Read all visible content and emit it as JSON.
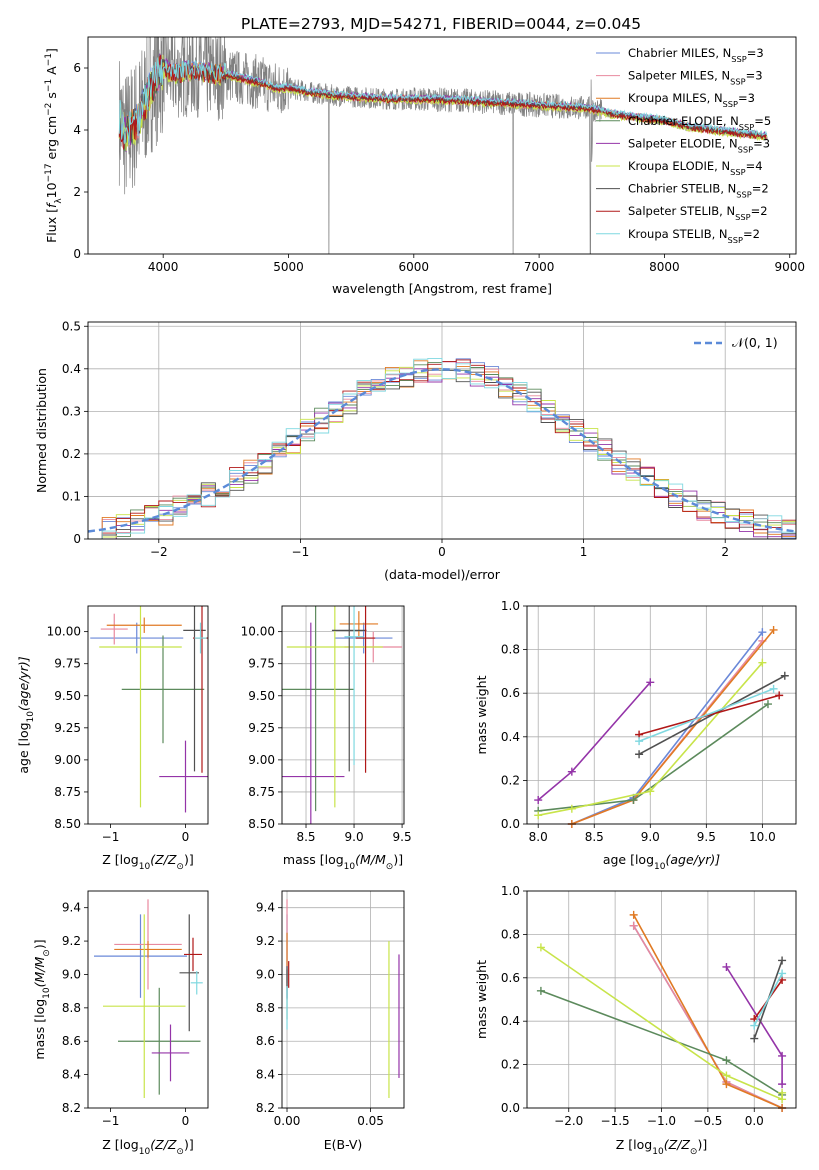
{
  "figure_title": "PLATE=2793, MJD=54271, FIBERID=0044, z=0.045",
  "model_colors": [
    "#6a88d8",
    "#e8899e",
    "#e07a24",
    "#5c8a5c",
    "#9434a8",
    "#c8e44a",
    "#505050",
    "#b01818",
    "#7fd8e0"
  ],
  "chart_data": [
    {
      "id": "spectrum",
      "type": "line",
      "title": "PLATE=2793, MJD=54271, FIBERID=0044, z=0.045",
      "xlabel": "wavelength [Angstrom, rest frame]",
      "ylabel_pre": "Flux [",
      "ylabel_sym": "f",
      "ylabel_sub": "λ",
      "ylabel_mid": "10",
      "ylabel_sup": "−17",
      "ylabel_post": " erg cm",
      "ylabel_sup2": "−2",
      "ylabel_post2": " s",
      "ylabel_sup3": "−1",
      "ylabel_post3": " A",
      "ylabel_sup4": "−1",
      "ylabel_end": "]",
      "xlim": [
        3400,
        9050
      ],
      "ylim": [
        0,
        7
      ],
      "xticks": [
        4000,
        5000,
        6000,
        7000,
        8000,
        9000
      ],
      "yticks": [
        0,
        2,
        4,
        6
      ],
      "data_range": [
        3650,
        8820
      ],
      "data_color": "#808080",
      "legend_position": "upper right",
      "continuum_x": [
        3650,
        3700,
        3800,
        3900,
        4000,
        4100,
        4200,
        4300,
        4400,
        4500,
        4600,
        4700,
        4800,
        4900,
        5000,
        5200,
        5400,
        5600,
        5800,
        6000,
        6200,
        6400,
        6600,
        6800,
        7000,
        7200,
        7400,
        7600,
        7800,
        8000,
        8200,
        8400,
        8600,
        8820
      ],
      "continuum_y": [
        4.4,
        3.8,
        4.3,
        5.4,
        6.0,
        5.8,
        5.9,
        5.9,
        5.8,
        5.8,
        5.7,
        5.6,
        5.5,
        5.35,
        5.35,
        5.2,
        5.1,
        5.05,
        5.0,
        5.0,
        4.98,
        4.95,
        4.9,
        4.85,
        4.8,
        4.75,
        4.7,
        4.5,
        4.4,
        4.3,
        4.1,
        4.0,
        3.9,
        3.8
      ],
      "series": [
        {
          "legend_pre": "Chabrier MILES, N",
          "legend_sub": "SSP",
          "legend_post": "=3"
        },
        {
          "legend_pre": "Salpeter MILES, N",
          "legend_sub": "SSP",
          "legend_post": "=3"
        },
        {
          "legend_pre": "Kroupa MILES, N",
          "legend_sub": "SSP",
          "legend_post": "=3"
        },
        {
          "legend_pre": "Chabrier ELODIE, N",
          "legend_sub": "SSP",
          "legend_post": "=5"
        },
        {
          "legend_pre": "Salpeter ELODIE, N",
          "legend_sub": "SSP",
          "legend_post": "=3"
        },
        {
          "legend_pre": "Kroupa ELODIE, N",
          "legend_sub": "SSP",
          "legend_post": "=4"
        },
        {
          "legend_pre": "Chabrier STELIB, N",
          "legend_sub": "SSP",
          "legend_post": "=2"
        },
        {
          "legend_pre": "Salpeter STELIB, N",
          "legend_sub": "SSP",
          "legend_post": "=2"
        },
        {
          "legend_pre": "Kroupa STELIB, N",
          "legend_sub": "SSP",
          "legend_post": "=2"
        }
      ]
    },
    {
      "id": "residuals",
      "type": "histogram",
      "xlabel": "(data-model)/error",
      "ylabel": "Normed distribution",
      "xlim": [
        -2.5,
        2.5
      ],
      "ylim": [
        0,
        0.51
      ],
      "xticks": [
        -2,
        -1,
        0,
        1,
        2
      ],
      "yticks": [
        0.0,
        0.1,
        0.2,
        0.3,
        0.4,
        0.5
      ],
      "grid": true,
      "bin_width": 0.1,
      "legend_position": "upper right",
      "normal_curve": {
        "label": "𝒩(0, 1)",
        "color": "#5b8ad8",
        "mean": 0,
        "sigma": 1
      }
    },
    {
      "id": "age-vs-z",
      "type": "errorbar",
      "xlabel_pre": "Z [log",
      "xlabel_sub": "10",
      "xlabel_post": "(Z/Z",
      "xlabel_sub2": "⊙",
      "xlabel_end": ")]",
      "ylabel_pre": "age  [log",
      "ylabel_sub": "10",
      "ylabel_post": "(age/yr)]",
      "xlim": [
        -1.3,
        0.3
      ],
      "ylim": [
        8.5,
        10.2
      ],
      "xticks": [
        -1,
        0
      ],
      "yticks": [
        8.5,
        8.75,
        9.0,
        9.25,
        9.5,
        9.75,
        10.0
      ],
      "ytick_labels": [
        "8.50",
        "8.75",
        "9.00",
        "9.25",
        "9.50",
        "9.75",
        "10.00"
      ],
      "grid": false,
      "items": [
        {
          "c": 0,
          "x": -0.65,
          "xerr": 0.62,
          "y": 9.95,
          "yerr": 0.12
        },
        {
          "c": 1,
          "x": -0.95,
          "xerr": 0.18,
          "y": 10.02,
          "yerr": 0.12
        },
        {
          "c": 2,
          "x": -0.55,
          "xerr": 0.5,
          "y": 10.05,
          "yerr": 0.06
        },
        {
          "c": 3,
          "x": -0.3,
          "xerr": 0.55,
          "y": 9.55,
          "yerr": 0.42
        },
        {
          "c": 4,
          "x": 0.0,
          "xerr": 0.35,
          "y": 8.87,
          "yerr": 0.28
        },
        {
          "c": 5,
          "x": -0.6,
          "xerr": 0.55,
          "y": 9.88,
          "yerr": 1.25
        },
        {
          "c": 6,
          "x": 0.12,
          "xerr": 0.15,
          "y": 10.01,
          "yerr": 1.1
        },
        {
          "c": 7,
          "x": 0.22,
          "xerr": 0.12,
          "y": 9.95,
          "yerr": 1.05
        },
        {
          "c": 8,
          "x": 0.2,
          "xerr": 0.08,
          "y": 9.95,
          "yerr": 0.12
        }
      ]
    },
    {
      "id": "age-vs-mass",
      "type": "errorbar",
      "xlabel_pre": "mass [log",
      "xlabel_sub": "10",
      "xlabel_post": "(M/M",
      "xlabel_sub2": "⊙",
      "xlabel_end": ")]",
      "xlim": [
        8.25,
        9.52
      ],
      "ylim": [
        8.5,
        10.2
      ],
      "xticks": [
        8.5,
        9.0,
        9.5
      ],
      "xtick_labels": [
        "8.5",
        "9.0",
        "9.5"
      ],
      "yticks": [
        8.5,
        8.75,
        9.0,
        9.25,
        9.5,
        9.75,
        10.0
      ],
      "ytick_labels": [
        "8.50",
        "8.75",
        "9.00",
        "9.25",
        "9.50",
        "9.75",
        "10.00"
      ],
      "grid": true,
      "items": [
        {
          "c": 0,
          "x": 9.1,
          "xerr": 0.3,
          "y": 9.95,
          "yerr": 0.12
        },
        {
          "c": 1,
          "x": 9.2,
          "xerr": 0.3,
          "y": 9.88,
          "yerr": 0.12
        },
        {
          "c": 2,
          "x": 9.05,
          "xerr": 0.2,
          "y": 10.06,
          "yerr": 0.1
        },
        {
          "c": 3,
          "x": 8.6,
          "xerr": 0.4,
          "y": 9.55,
          "yerr": 0.95
        },
        {
          "c": 4,
          "x": 8.55,
          "xerr": 0.35,
          "y": 8.87,
          "yerr": 1.2
        },
        {
          "c": 5,
          "x": 8.8,
          "xerr": 0.5,
          "y": 9.88,
          "yerr": 1.25
        },
        {
          "c": 6,
          "x": 8.95,
          "xerr": 0.18,
          "y": 10.01,
          "yerr": 1.1
        },
        {
          "c": 7,
          "x": 9.12,
          "xerr": 0.1,
          "y": 9.95,
          "yerr": 1.05
        },
        {
          "c": 8,
          "x": 9.0,
          "xerr": 0.1,
          "y": 9.96,
          "yerr": 1.0
        }
      ]
    },
    {
      "id": "mass-weight-vs-age",
      "type": "line",
      "xlabel_pre": "age  [log",
      "xlabel_sub": "10",
      "xlabel_post": "(age/yr)]",
      "ylabel": "mass weight",
      "xlim": [
        7.9,
        10.3
      ],
      "ylim": [
        0,
        1
      ],
      "xticks": [
        8.0,
        8.5,
        9.0,
        9.5,
        10.0
      ],
      "xtick_labels": [
        "8.0",
        "8.5",
        "9.0",
        "9.5",
        "10.0"
      ],
      "yticks": [
        0.0,
        0.2,
        0.4,
        0.6,
        0.8,
        1.0
      ],
      "ytick_labels": [
        "0.0",
        "0.2",
        "0.4",
        "0.6",
        "0.8",
        "1.0"
      ],
      "grid": true,
      "series": [
        {
          "c": 0,
          "x": [
            8.3,
            8.85,
            10.0
          ],
          "y": [
            0.0,
            0.12,
            0.88
          ]
        },
        {
          "c": 1,
          "x": [
            8.3,
            8.85,
            10.0
          ],
          "y": [
            0.0,
            0.11,
            0.84
          ]
        },
        {
          "c": 2,
          "x": [
            8.3,
            8.85,
            10.1
          ],
          "y": [
            0.0,
            0.11,
            0.89
          ]
        },
        {
          "c": 3,
          "x": [
            8.0,
            8.85,
            10.05
          ],
          "y": [
            0.06,
            0.11,
            0.55
          ]
        },
        {
          "c": 4,
          "x": [
            8.0,
            8.3,
            9.0
          ],
          "y": [
            0.11,
            0.24,
            0.65
          ]
        },
        {
          "c": 5,
          "x": [
            8.0,
            8.3,
            9.0,
            10.0
          ],
          "y": [
            0.04,
            0.07,
            0.15,
            0.74
          ]
        },
        {
          "c": 6,
          "x": [
            8.9,
            10.2
          ],
          "y": [
            0.32,
            0.68
          ]
        },
        {
          "c": 7,
          "x": [
            8.9,
            10.15
          ],
          "y": [
            0.41,
            0.59
          ]
        },
        {
          "c": 8,
          "x": [
            8.9,
            10.1
          ],
          "y": [
            0.38,
            0.62
          ]
        }
      ]
    },
    {
      "id": "mass-vs-z",
      "type": "errorbar",
      "xlabel_pre": "Z [log",
      "xlabel_sub": "10",
      "xlabel_post": "(Z/Z",
      "xlabel_sub2": "⊙",
      "xlabel_end": ")]",
      "ylabel_pre": "mass [log",
      "ylabel_sub": "10",
      "ylabel_post": "(M/M",
      "ylabel_sub2": "⊙",
      "ylabel_end": ")]",
      "xlim": [
        -1.3,
        0.3
      ],
      "ylim": [
        8.2,
        9.5
      ],
      "xticks": [
        -1,
        0
      ],
      "yticks": [
        8.2,
        8.4,
        8.6,
        8.8,
        9.0,
        9.2,
        9.4
      ],
      "ytick_labels": [
        "8.2",
        "8.4",
        "8.6",
        "8.8",
        "9.0",
        "9.2",
        "9.4"
      ],
      "grid": false,
      "items": [
        {
          "c": 0,
          "x": -0.6,
          "xerr": 0.62,
          "y": 9.11,
          "yerr": 0.25
        },
        {
          "c": 1,
          "x": -0.5,
          "xerr": 0.45,
          "y": 9.18,
          "yerr": 0.27
        },
        {
          "c": 2,
          "x": -0.5,
          "xerr": 0.45,
          "y": 9.15,
          "yerr": 0.05
        },
        {
          "c": 3,
          "x": -0.35,
          "xerr": 0.55,
          "y": 8.6,
          "yerr": 0.32
        },
        {
          "c": 4,
          "x": -0.2,
          "xerr": 0.25,
          "y": 8.53,
          "yerr": 0.17
        },
        {
          "c": 5,
          "x": -0.55,
          "xerr": 0.55,
          "y": 8.81,
          "yerr": 0.55
        },
        {
          "c": 6,
          "x": 0.05,
          "xerr": 0.13,
          "y": 9.01,
          "yerr": 0.35
        },
        {
          "c": 7,
          "x": 0.1,
          "xerr": 0.12,
          "y": 9.12,
          "yerr": 0.1
        },
        {
          "c": 8,
          "x": 0.15,
          "xerr": 0.08,
          "y": 8.95,
          "yerr": 0.07
        }
      ]
    },
    {
      "id": "mass-vs-ebv",
      "type": "errorbar",
      "xlabel": "E(B-V)",
      "xlim": [
        -0.003,
        0.07
      ],
      "ylim": [
        8.2,
        9.5
      ],
      "xticks": [
        0.0,
        0.05
      ],
      "xtick_labels": [
        "0.00",
        "0.05"
      ],
      "yticks": [
        8.2,
        8.4,
        8.6,
        8.8,
        9.0,
        9.2,
        9.4
      ],
      "ytick_labels": [
        "8.2",
        "8.4",
        "8.6",
        "8.8",
        "9.0",
        "9.2",
        "9.4"
      ],
      "grid": true,
      "items": [
        {
          "c": 0,
          "x": 0.0,
          "xerr": 0,
          "y": 9.11,
          "yerr": 0.25
        },
        {
          "c": 1,
          "x": 0.0,
          "xerr": 0,
          "y": 9.2,
          "yerr": 0.25
        },
        {
          "c": 2,
          "x": 0.0,
          "xerr": 0,
          "y": 9.15,
          "yerr": 0.1
        },
        {
          "c": 3,
          "x": 0.0,
          "xerr": 0,
          "y": 8.88,
          "yerr": 0.15
        },
        {
          "c": 4,
          "x": 0.067,
          "xerr": 0,
          "y": 8.75,
          "yerr": 0.37
        },
        {
          "c": 5,
          "x": 0.061,
          "xerr": 0,
          "y": 8.73,
          "yerr": 0.47
        },
        {
          "c": 6,
          "x": 0.0,
          "xerr": 0,
          "y": 8.95,
          "yerr": 0.1
        },
        {
          "c": 7,
          "x": 0.001,
          "xerr": 0,
          "y": 9.0,
          "yerr": 0.08
        },
        {
          "c": 8,
          "x": 0.0,
          "xerr": 0,
          "y": 8.8,
          "yerr": 0.13
        }
      ]
    },
    {
      "id": "mass-weight-vs-z",
      "type": "line",
      "xlabel_pre": "Z [log",
      "xlabel_sub": "10",
      "xlabel_post": "(Z/Z",
      "xlabel_sub2": "⊙",
      "xlabel_end": ")]",
      "ylabel": "mass weight",
      "xlim": [
        -2.45,
        0.45
      ],
      "ylim": [
        0,
        1
      ],
      "xticks": [
        -2.0,
        -1.5,
        -1.0,
        -0.5,
        0.0
      ],
      "xtick_labels": [
        "−2.0",
        "−1.5",
        "−1.0",
        "−0.5",
        "0.0"
      ],
      "yticks": [
        0.0,
        0.2,
        0.4,
        0.6,
        0.8,
        1.0
      ],
      "ytick_labels": [
        "0.0",
        "0.2",
        "0.4",
        "0.6",
        "0.8",
        "1.0"
      ],
      "grid": true,
      "series": [
        {
          "c": 0,
          "x": [
            -1.3,
            -0.3,
            0.3
          ],
          "y": [
            0.84,
            0.12,
            0.0
          ]
        },
        {
          "c": 1,
          "x": [
            -1.3,
            -0.3,
            0.3
          ],
          "y": [
            0.84,
            0.12,
            0.0
          ]
        },
        {
          "c": 2,
          "x": [
            -1.3,
            -0.3,
            0.3
          ],
          "y": [
            0.89,
            0.11,
            0.0
          ]
        },
        {
          "c": 3,
          "x": [
            -2.3,
            -0.3,
            0.3
          ],
          "y": [
            0.54,
            0.22,
            0.06
          ]
        },
        {
          "c": 4,
          "x": [
            -0.3,
            0.3,
            0.3
          ],
          "y": [
            0.65,
            0.24,
            0.11
          ]
        },
        {
          "c": 5,
          "x": [
            -2.3,
            -0.3,
            0.3,
            0.3
          ],
          "y": [
            0.74,
            0.15,
            0.04,
            0.07
          ]
        },
        {
          "c": 6,
          "x": [
            0.0,
            0.3
          ],
          "y": [
            0.32,
            0.68
          ]
        },
        {
          "c": 7,
          "x": [
            0.0,
            0.3
          ],
          "y": [
            0.41,
            0.59
          ]
        },
        {
          "c": 8,
          "x": [
            0.0,
            0.3
          ],
          "y": [
            0.38,
            0.62
          ]
        }
      ]
    }
  ]
}
